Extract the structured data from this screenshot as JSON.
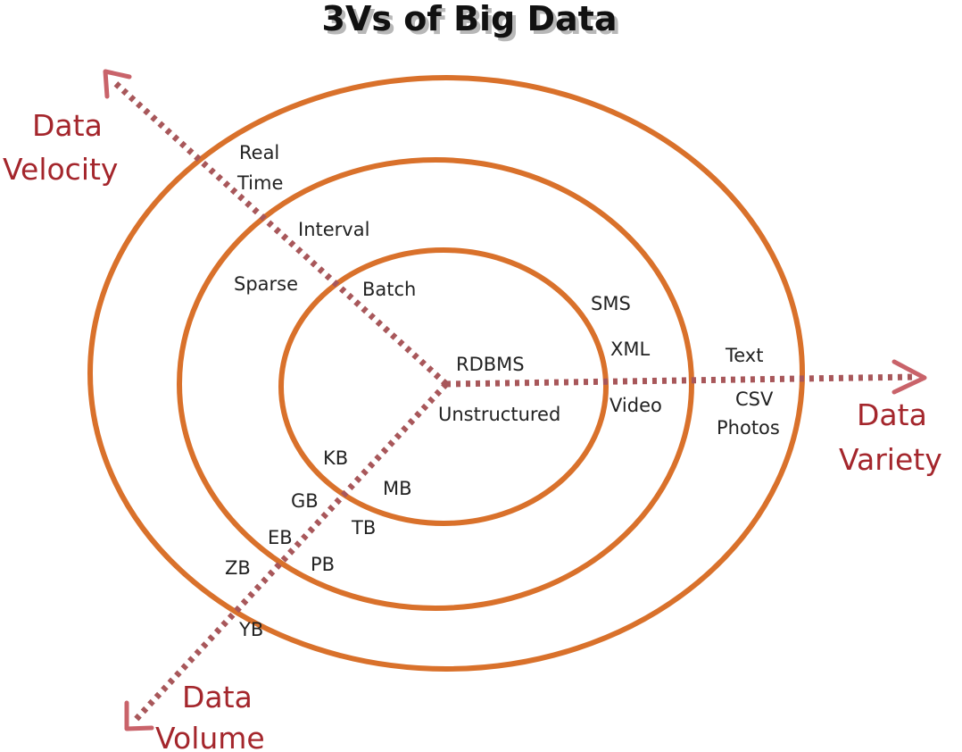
{
  "title": "3Vs of Big Data",
  "axes": {
    "velocity": [
      "Data",
      "Velocity"
    ],
    "variety": [
      "Data",
      "Variety"
    ],
    "volume": [
      "Data",
      "Volume"
    ]
  },
  "velocity_labels": {
    "real_time": [
      "Real",
      "Time"
    ],
    "interval": "Interval",
    "sparse": "Sparse",
    "batch": "Batch"
  },
  "variety_labels": {
    "rdbms": "RDBMS",
    "unstructured": "Unstructured",
    "sms": "SMS",
    "xml": "XML",
    "video": "Video",
    "text": "Text",
    "csv": "CSV",
    "photos": "Photos"
  },
  "volume_labels": {
    "kb": "KB",
    "mb": "MB",
    "gb": "GB",
    "tb": "TB",
    "eb": "EB",
    "pb": "PB",
    "zb": "ZB",
    "yb": "YB"
  },
  "colors": {
    "ring": "#d9712b",
    "axis": "#a8575a",
    "axis_label": "#a4262c"
  }
}
